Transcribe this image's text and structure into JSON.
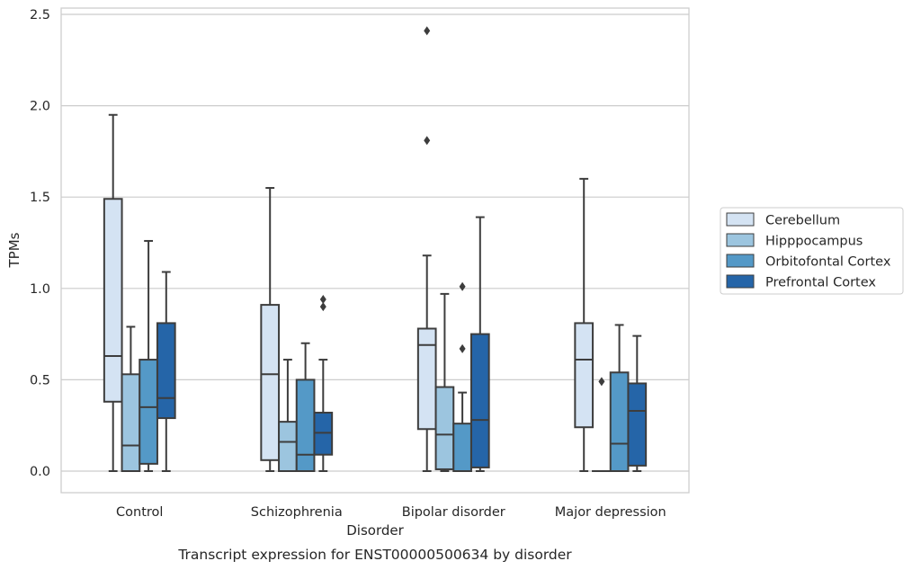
{
  "chart_data": {
    "type": "box",
    "caption": "Transcript expression for ENST00000500634 by disorder",
    "xlabel": "Disorder",
    "ylabel": "TPMs",
    "ylim": [
      -0.12,
      2.55
    ],
    "yticks": [
      0.0,
      0.5,
      1.0,
      1.5,
      2.0,
      2.5
    ],
    "ytick_labels": [
      "0.0",
      "0.5",
      "1.0",
      "1.5",
      "2.0",
      "2.5"
    ],
    "grid": "horizontal",
    "legend_position": "right",
    "categories": [
      "Control",
      "Schizophrenia",
      "Bipolar disorder",
      "Major depression"
    ],
    "series": [
      {
        "name": "Cerebellum",
        "color": "#d4e3f3",
        "boxes": [
          {
            "whislo": 0.0,
            "q1": 0.38,
            "median": 0.63,
            "q3": 1.49,
            "whishi": 1.95,
            "fliers": []
          },
          {
            "whislo": 0.0,
            "q1": 0.06,
            "median": 0.53,
            "q3": 0.91,
            "whishi": 1.55,
            "fliers": []
          },
          {
            "whislo": 0.0,
            "q1": 0.23,
            "median": 0.69,
            "q3": 0.78,
            "whishi": 1.18,
            "fliers": [
              1.81,
              2.41
            ]
          },
          {
            "whislo": 0.0,
            "q1": 0.24,
            "median": 0.61,
            "q3": 0.81,
            "whishi": 1.6,
            "fliers": []
          }
        ]
      },
      {
        "name": "Hipppocampus",
        "color": "#9cc5df",
        "boxes": [
          {
            "whislo": 0.0,
            "q1": 0.0,
            "median": 0.14,
            "q3": 0.53,
            "whishi": 0.79,
            "fliers": []
          },
          {
            "whislo": 0.0,
            "q1": 0.0,
            "median": 0.16,
            "q3": 0.27,
            "whishi": 0.61,
            "fliers": []
          },
          {
            "whislo": 0.0,
            "q1": 0.01,
            "median": 0.2,
            "q3": 0.46,
            "whishi": 0.97,
            "fliers": []
          },
          {
            "whislo": 0.0,
            "q1": 0.0,
            "median": 0.0,
            "q3": 0.0,
            "whishi": 0.0,
            "fliers": [
              0.49
            ]
          }
        ]
      },
      {
        "name": "Orbitofontal Cortex",
        "color": "#5499c7",
        "boxes": [
          {
            "whislo": 0.0,
            "q1": 0.04,
            "median": 0.35,
            "q3": 0.61,
            "whishi": 1.26,
            "fliers": []
          },
          {
            "whislo": 0.0,
            "q1": 0.0,
            "median": 0.09,
            "q3": 0.5,
            "whishi": 0.7,
            "fliers": []
          },
          {
            "whislo": 0.0,
            "q1": 0.0,
            "median": 0.0,
            "q3": 0.26,
            "whishi": 0.43,
            "fliers": [
              0.67,
              1.01
            ]
          },
          {
            "whislo": 0.0,
            "q1": 0.0,
            "median": 0.15,
            "q3": 0.54,
            "whishi": 0.8,
            "fliers": []
          }
        ]
      },
      {
        "name": "Prefrontal Cortex",
        "color": "#2565a8",
        "boxes": [
          {
            "whislo": 0.0,
            "q1": 0.29,
            "median": 0.4,
            "q3": 0.81,
            "whishi": 1.09,
            "fliers": []
          },
          {
            "whislo": 0.0,
            "q1": 0.09,
            "median": 0.21,
            "q3": 0.32,
            "whishi": 0.61,
            "fliers": [
              0.9,
              0.94
            ]
          },
          {
            "whislo": 0.0,
            "q1": 0.02,
            "median": 0.28,
            "q3": 0.75,
            "whishi": 1.39,
            "fliers": []
          },
          {
            "whislo": 0.0,
            "q1": 0.03,
            "median": 0.33,
            "q3": 0.48,
            "whishi": 0.74,
            "fliers": []
          }
        ]
      }
    ]
  }
}
